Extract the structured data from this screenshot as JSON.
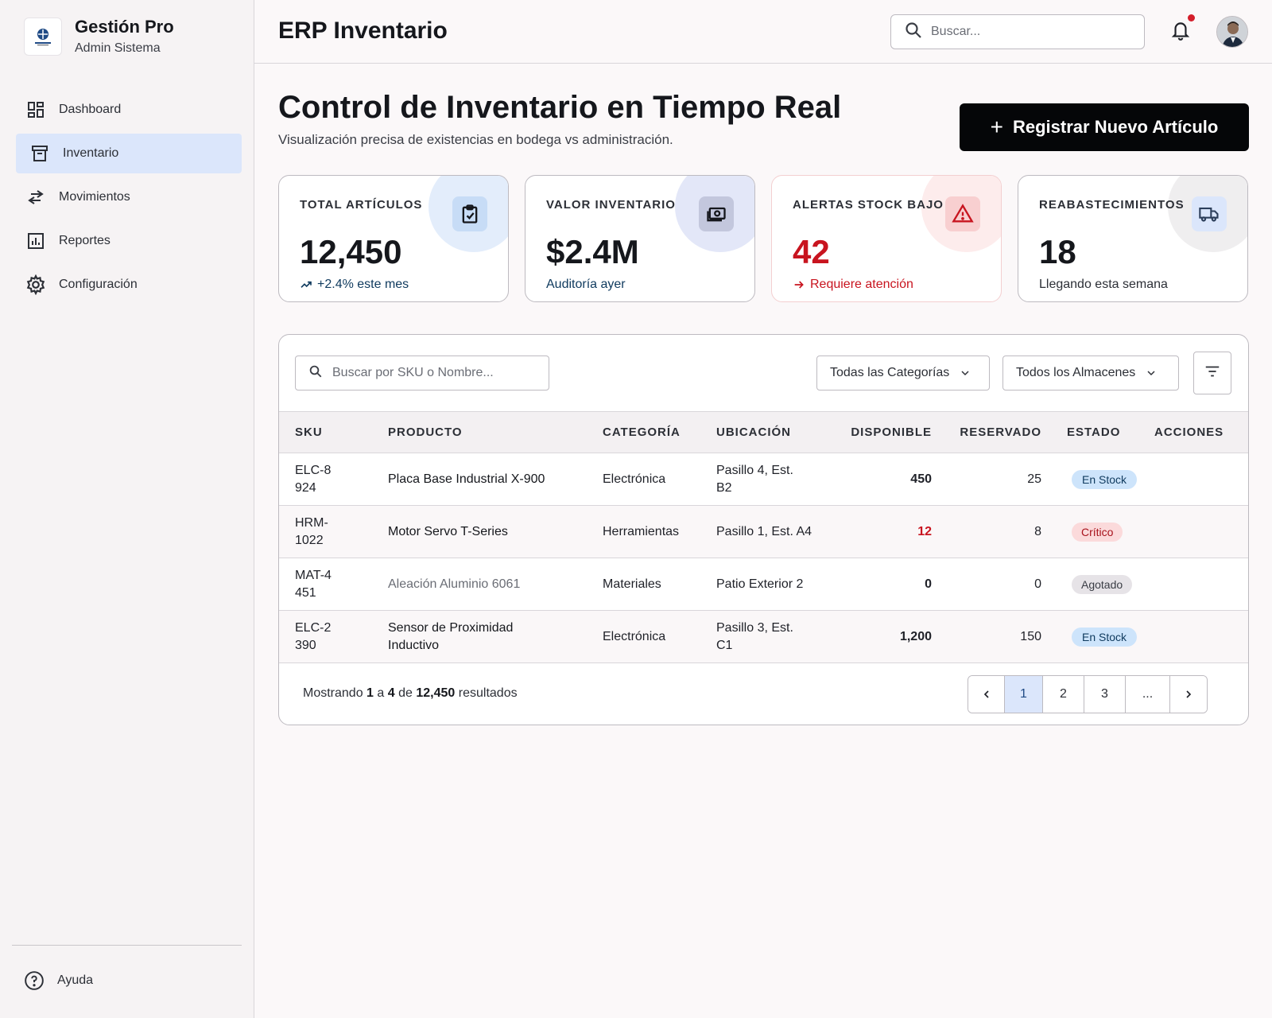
{
  "brand": {
    "title": "Gestión Pro",
    "subtitle": "Admin Sistema",
    "logo_icon": "inventory-logo"
  },
  "sidebar": {
    "items": [
      {
        "label": "Dashboard",
        "icon": "dashboard-icon",
        "active": false
      },
      {
        "label": "Inventario",
        "icon": "archive-box-icon",
        "active": true
      },
      {
        "label": "Movimientos",
        "icon": "swap-arrows-icon",
        "active": false
      },
      {
        "label": "Reportes",
        "icon": "bar-chart-icon",
        "active": false
      },
      {
        "label": "Configuración",
        "icon": "gear-icon",
        "active": false
      }
    ],
    "help": "Ayuda"
  },
  "header": {
    "title": "ERP Inventario",
    "search_placeholder": "Buscar...",
    "notifications_unread": true
  },
  "page": {
    "title": "Control de Inventario en Tiempo Real",
    "subtitle": "Visualización precisa de existencias en bodega vs administración.",
    "primary_button": "Registrar Nuevo Artículo"
  },
  "stats": [
    {
      "label": "TOTAL ARTÍCULOS",
      "value": "12,450",
      "note": "+2.4% este mes",
      "icon": "clipboard-check-icon",
      "accent": "#0f3a5e"
    },
    {
      "label": "VALOR INVENTARIO",
      "value": "$2.4M",
      "note": "Auditoría ayer",
      "icon": "money-icon",
      "accent": "#0f3a5e"
    },
    {
      "label": "ALERTAS STOCK BAJO",
      "value": "42",
      "note": "Requiere atención",
      "icon": "warning-icon",
      "accent": "#c8141f"
    },
    {
      "label": "REABASTECIMIENTOS",
      "value": "18",
      "note": "Llegando esta semana",
      "icon": "truck-icon",
      "accent": "#2c2f36"
    }
  ],
  "table": {
    "search_placeholder": "Buscar por SKU o Nombre...",
    "category_filter": "Todas las Categorías",
    "warehouse_filter": "Todos los Almacenes",
    "columns": [
      "SKU",
      "PRODUCTO",
      "CATEGORÍA",
      "UBICACIÓN",
      "DISPONIBLE",
      "RESERVADO",
      "ESTADO",
      "ACCIONES"
    ],
    "rows": [
      {
        "sku": "ELC-8924",
        "product": "Placa Base Industrial X-900",
        "category": "Electrónica",
        "location": "Pasillo 4, Est. B2",
        "available": "450",
        "reserved": "25",
        "status": "En Stock",
        "status_type": "ok"
      },
      {
        "sku": "HRM-1022",
        "product": "Motor Servo T-Series",
        "category": "Herramientas",
        "location": "Pasillo 1, Est. A4",
        "available": "12",
        "reserved": "8",
        "status": "Crítico",
        "status_type": "crit"
      },
      {
        "sku": "MAT-4451",
        "product": "Aleación Aluminio 6061",
        "category": "Materiales",
        "location": "Patio Exterior 2",
        "available": "0",
        "reserved": "0",
        "status": "Agotado",
        "status_type": "out"
      },
      {
        "sku": "ELC-2390",
        "product": "Sensor de Proximidad Inductivo",
        "category": "Electrónica",
        "location": "Pasillo 3, Est. C1",
        "available": "1,200",
        "reserved": "150",
        "status": "En Stock",
        "status_type": "ok"
      }
    ]
  },
  "pagination": {
    "prefix": "Mostrando",
    "from": "1",
    "sep1": "a",
    "to": "4",
    "sep2": "de",
    "total": "12,450",
    "suffix": "resultados",
    "pages": [
      "1",
      "2",
      "3",
      "..."
    ],
    "current": "1"
  }
}
